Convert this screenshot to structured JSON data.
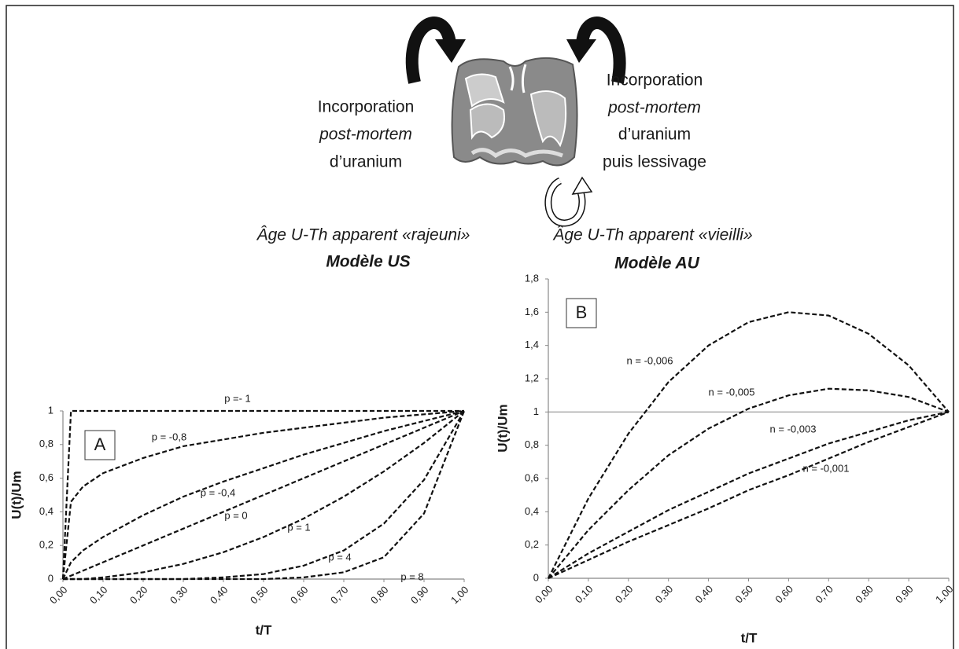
{
  "diagram": {
    "left_text": [
      "Incorporation",
      "post-mortem",
      "d’uranium"
    ],
    "right_text": [
      "Incorporation",
      "post-mortem",
      "d’uranium",
      "puis lessivage"
    ],
    "left_caption": "Âge U-Th apparent «rajeuni»",
    "left_model": "Modèle US",
    "right_caption": "Âge U-Th apparent «vieilli»",
    "right_model": "Modèle AU"
  },
  "chart_data": [
    {
      "type": "line",
      "panel_label": "A",
      "xlabel": "t/T",
      "ylabel": "U(t)/Um",
      "line_style": "dashed",
      "x": [
        0,
        0.02,
        0.05,
        0.1,
        0.2,
        0.3,
        0.4,
        0.5,
        0.6,
        0.7,
        0.8,
        0.9,
        1
      ],
      "xlim": [
        0,
        1
      ],
      "xticks": [
        {
          "value": 0,
          "label": "0,00"
        },
        {
          "value": 0.1,
          "label": "0,10"
        },
        {
          "value": 0.2,
          "label": "0,20"
        },
        {
          "value": 0.3,
          "label": "0,30"
        },
        {
          "value": 0.4,
          "label": "0,40"
        },
        {
          "value": 0.5,
          "label": "0,50"
        },
        {
          "value": 0.6,
          "label": "0,60"
        },
        {
          "value": 0.7,
          "label": "0,70"
        },
        {
          "value": 0.8,
          "label": "0,80"
        },
        {
          "value": 0.9,
          "label": "0,90"
        },
        {
          "value": 1,
          "label": "1,00"
        }
      ],
      "ylim": [
        0,
        1
      ],
      "yticks": [
        0,
        {
          "value": 0.2,
          "label": "0,2"
        },
        {
          "value": 0.4,
          "label": "0,4"
        },
        {
          "value": 0.6,
          "label": "0,6"
        },
        {
          "value": 0.8,
          "label": "0,8"
        },
        1
      ],
      "series": [
        {
          "name": "p =- 1",
          "color": "#111111",
          "values": [
            0,
            1,
            1,
            1,
            1,
            1,
            1,
            1,
            1,
            1,
            1,
            1,
            1
          ]
        },
        {
          "name": "p = -0,8",
          "color": "#111111",
          "values": [
            0,
            0.46,
            0.55,
            0.63,
            0.72,
            0.79,
            0.83,
            0.87,
            0.9,
            0.93,
            0.96,
            0.98,
            1
          ]
        },
        {
          "name": "p = -0,4",
          "color": "#111111",
          "values": [
            0,
            0.1,
            0.17,
            0.25,
            0.38,
            0.49,
            0.58,
            0.66,
            0.74,
            0.81,
            0.88,
            0.94,
            1
          ]
        },
        {
          "name": "p = 0",
          "color": "#111111",
          "values": [
            0,
            0.02,
            0.05,
            0.1,
            0.2,
            0.3,
            0.4,
            0.5,
            0.6,
            0.7,
            0.8,
            0.9,
            1
          ]
        },
        {
          "name": "p = 1",
          "color": "#111111",
          "values": [
            0,
            0,
            0,
            0.01,
            0.04,
            0.09,
            0.16,
            0.25,
            0.36,
            0.49,
            0.64,
            0.81,
            1
          ]
        },
        {
          "name": "p = 4",
          "color": "#111111",
          "values": [
            0,
            0,
            0,
            0,
            0,
            0,
            0.01,
            0.03,
            0.08,
            0.17,
            0.33,
            0.59,
            1
          ]
        },
        {
          "name": "p = 8",
          "color": "#111111",
          "values": [
            0,
            0,
            0,
            0,
            0,
            0,
            0,
            0,
            0.01,
            0.04,
            0.13,
            0.39,
            1
          ]
        }
      ]
    },
    {
      "type": "line",
      "panel_label": "B",
      "xlabel": "t/T",
      "ylabel": "U(t)/Um",
      "line_style": "dashed",
      "reference_line": {
        "value": 1,
        "color": "#aaaaaa"
      },
      "x": [
        0,
        0.1,
        0.2,
        0.3,
        0.4,
        0.5,
        0.6,
        0.7,
        0.8,
        0.9,
        1
      ],
      "xlim": [
        0,
        1
      ],
      "xticks": [
        {
          "value": 0,
          "label": "0,00"
        },
        {
          "value": 0.1,
          "label": "0,10"
        },
        {
          "value": 0.2,
          "label": "0,20"
        },
        {
          "value": 0.3,
          "label": "0,30"
        },
        {
          "value": 0.4,
          "label": "0,40"
        },
        {
          "value": 0.5,
          "label": "0,50"
        },
        {
          "value": 0.6,
          "label": "0,60"
        },
        {
          "value": 0.7,
          "label": "0,70"
        },
        {
          "value": 0.8,
          "label": "0,80"
        },
        {
          "value": 0.9,
          "label": "0,90"
        },
        {
          "value": 1,
          "label": "1,00"
        }
      ],
      "ylim": [
        0,
        1.8
      ],
      "yticks": [
        0,
        {
          "value": 0.2,
          "label": "0,2"
        },
        {
          "value": 0.4,
          "label": "0,4"
        },
        {
          "value": 0.6,
          "label": "0,6"
        },
        {
          "value": 0.8,
          "label": "0,8"
        },
        1,
        {
          "value": 1.2,
          "label": "1,2"
        },
        {
          "value": 1.4,
          "label": "1,4"
        },
        {
          "value": 1.6,
          "label": "1,6"
        },
        {
          "value": 1.8,
          "label": "1,8"
        }
      ],
      "series": [
        {
          "name": "n = -0,006",
          "color": "#111111",
          "values": [
            0,
            0.48,
            0.87,
            1.18,
            1.4,
            1.54,
            1.6,
            1.58,
            1.47,
            1.28,
            1
          ]
        },
        {
          "name": "n = -0,005",
          "color": "#111111",
          "values": [
            0,
            0.29,
            0.53,
            0.74,
            0.9,
            1.02,
            1.1,
            1.14,
            1.13,
            1.09,
            1
          ]
        },
        {
          "name": "n = -0,003",
          "color": "#111111",
          "values": [
            0,
            0.15,
            0.28,
            0.41,
            0.52,
            0.63,
            0.72,
            0.81,
            0.88,
            0.95,
            1
          ]
        },
        {
          "name": "n = -0,001",
          "color": "#111111",
          "values": [
            0,
            0.11,
            0.22,
            0.32,
            0.42,
            0.53,
            0.62,
            0.72,
            0.82,
            0.91,
            1
          ]
        }
      ]
    }
  ]
}
